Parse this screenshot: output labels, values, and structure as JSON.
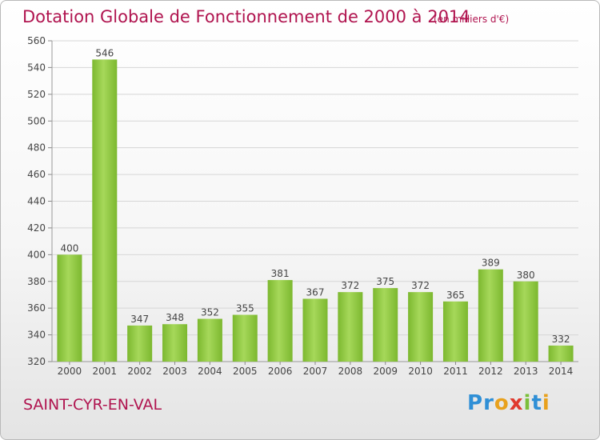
{
  "title": "Dotation Globale de Fonctionnement de 2000 à 2014",
  "subtitle": "(en milliers d'€)",
  "commune": "SAINT-CYR-EN-VAL",
  "logo": {
    "letters": [
      "P",
      "r",
      "o",
      "x",
      "i",
      "t",
      "i"
    ],
    "colors": [
      "#2f8fd6",
      "#2f8fd6",
      "#e8a11d",
      "#e03a2e",
      "#7bbf3a",
      "#2f8fd6",
      "#e8a11d"
    ]
  },
  "chart_data": {
    "type": "bar",
    "categories": [
      "2000",
      "2001",
      "2002",
      "2003",
      "2004",
      "2005",
      "2006",
      "2007",
      "2008",
      "2009",
      "2010",
      "2011",
      "2012",
      "2013",
      "2014"
    ],
    "values": [
      400,
      546,
      347,
      348,
      352,
      355,
      381,
      367,
      372,
      375,
      372,
      365,
      389,
      380,
      332
    ],
    "ylim": [
      320,
      560
    ],
    "yticks": [
      320,
      340,
      360,
      380,
      400,
      420,
      440,
      460,
      480,
      500,
      520,
      540,
      560
    ],
    "grid": true,
    "bar_color": "#7cb82f",
    "bar_highlight": "#a6d85a"
  }
}
